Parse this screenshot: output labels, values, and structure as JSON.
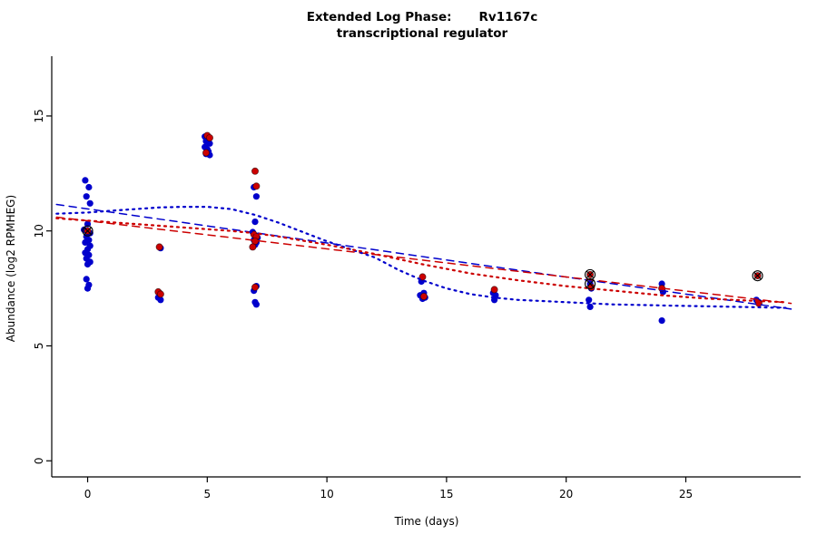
{
  "header": {
    "title_prefix": "Extended Log Phase:",
    "title_gene": "Rv1167c",
    "subtitle": "transcriptional regulator"
  },
  "chart_data": {
    "type": "scatter",
    "title": "Extended Log Phase: Rv1167c transcriptional regulator",
    "xlabel": "Time  (days)",
    "ylabel": "Abundance  (log2 RPMHEG)",
    "xlim": [
      -1.5,
      29.8
    ],
    "ylim": [
      -0.7,
      17.6
    ],
    "xticks": [
      0,
      5,
      10,
      15,
      20,
      25
    ],
    "yticks": [
      0,
      5,
      10,
      15
    ],
    "grid": false,
    "legend": "none",
    "colors": {
      "blue_series": "#0000CC",
      "red_series": "#CC0000",
      "highlight": "#000000"
    },
    "series": [
      {
        "name": "blue-replicates",
        "color": "#0000CC",
        "points": [
          [
            -0.1,
            12.2
          ],
          [
            0.05,
            11.9
          ],
          [
            -0.05,
            11.5
          ],
          [
            0.1,
            11.2
          ],
          [
            0,
            10.3
          ],
          [
            -0.15,
            10.05
          ],
          [
            0.1,
            9.9
          ],
          [
            -0.05,
            9.75
          ],
          [
            0.05,
            9.6
          ],
          [
            -0.1,
            9.5
          ],
          [
            0.1,
            9.35
          ],
          [
            0,
            9.2
          ],
          [
            -0.1,
            9.05
          ],
          [
            0.05,
            8.95
          ],
          [
            -0.05,
            8.8
          ],
          [
            0.1,
            8.65
          ],
          [
            0,
            8.55
          ],
          [
            -0.05,
            7.9
          ],
          [
            0.05,
            7.65
          ],
          [
            0,
            7.5
          ],
          [
            3.05,
            9.25
          ],
          [
            3,
            7.3
          ],
          [
            2.95,
            7.1
          ],
          [
            3.05,
            7.0
          ],
          [
            4.9,
            14.1
          ],
          [
            5.05,
            14.0
          ],
          [
            4.95,
            13.9
          ],
          [
            5.1,
            13.8
          ],
          [
            4.9,
            13.65
          ],
          [
            5,
            13.55
          ],
          [
            5.05,
            13.45
          ],
          [
            4.95,
            13.35
          ],
          [
            5.1,
            13.3
          ],
          [
            6.95,
            11.9
          ],
          [
            7.05,
            11.5
          ],
          [
            7,
            10.4
          ],
          [
            6.9,
            9.95
          ],
          [
            7.1,
            9.7
          ],
          [
            6.95,
            9.6
          ],
          [
            7.05,
            9.5
          ],
          [
            7,
            9.4
          ],
          [
            6.9,
            9.3
          ],
          [
            7.05,
            7.6
          ],
          [
            6.95,
            7.4
          ],
          [
            7,
            6.9
          ],
          [
            7.05,
            6.8
          ],
          [
            13.95,
            7.8
          ],
          [
            14.05,
            7.3
          ],
          [
            13.9,
            7.2
          ],
          [
            14.1,
            7.1
          ],
          [
            14,
            7.05
          ],
          [
            16.95,
            7.3
          ],
          [
            17.05,
            7.2
          ],
          [
            17,
            7.0
          ],
          [
            21,
            7.7
          ],
          [
            21.05,
            7.5
          ],
          [
            20.95,
            7.0
          ],
          [
            21,
            6.7
          ],
          [
            24,
            7.7
          ],
          [
            24.05,
            7.35
          ],
          [
            24,
            6.1
          ],
          [
            28,
            8.05
          ],
          [
            27.95,
            7.0
          ],
          [
            28.05,
            6.9
          ]
        ]
      },
      {
        "name": "red-replicates",
        "color": "#CC0000",
        "stroke": "rgba(40,0,0,0.65)",
        "points": [
          [
            0,
            10.0
          ],
          [
            3,
            9.3
          ],
          [
            2.95,
            7.35
          ],
          [
            3.05,
            7.25
          ],
          [
            5,
            14.15
          ],
          [
            5.1,
            14.05
          ],
          [
            4.95,
            13.4
          ],
          [
            7,
            12.6
          ],
          [
            7.05,
            11.95
          ],
          [
            6.95,
            9.85
          ],
          [
            7.05,
            9.75
          ],
          [
            7,
            9.55
          ],
          [
            6.9,
            9.3
          ],
          [
            7,
            7.55
          ],
          [
            14,
            8.0
          ],
          [
            14.05,
            7.15
          ],
          [
            17,
            7.45
          ],
          [
            21,
            8.1
          ],
          [
            21.05,
            7.55
          ],
          [
            24,
            7.5
          ],
          [
            28,
            8.05
          ],
          [
            28.05,
            6.85
          ]
        ]
      }
    ],
    "trend_lines": [
      {
        "name": "blue-linear-fit",
        "style": "dashed",
        "color": "#0000CC",
        "points": [
          [
            -1.3,
            11.15
          ],
          [
            29.4,
            6.6
          ]
        ]
      },
      {
        "name": "red-linear-fit",
        "style": "dashed",
        "color": "#CC0000",
        "points": [
          [
            -1.3,
            10.6
          ],
          [
            29.4,
            6.85
          ]
        ]
      },
      {
        "name": "blue-smooth-fit",
        "style": "dotted",
        "color": "#0000CC",
        "points": [
          [
            -1.3,
            10.75
          ],
          [
            0,
            10.8
          ],
          [
            1,
            10.88
          ],
          [
            2,
            10.95
          ],
          [
            3,
            11.02
          ],
          [
            4,
            11.05
          ],
          [
            5,
            11.05
          ],
          [
            6,
            10.95
          ],
          [
            7,
            10.7
          ],
          [
            8,
            10.35
          ],
          [
            9,
            9.95
          ],
          [
            10,
            9.55
          ],
          [
            11,
            9.2
          ],
          [
            12,
            8.85
          ],
          [
            13,
            8.3
          ],
          [
            14,
            7.85
          ],
          [
            15,
            7.5
          ],
          [
            16,
            7.25
          ],
          [
            17,
            7.1
          ],
          [
            18,
            7.0
          ],
          [
            19,
            6.95
          ],
          [
            20,
            6.9
          ],
          [
            21,
            6.85
          ],
          [
            22,
            6.8
          ],
          [
            23,
            6.78
          ],
          [
            24,
            6.76
          ],
          [
            25,
            6.74
          ],
          [
            26,
            6.72
          ],
          [
            27,
            6.7
          ],
          [
            28,
            6.68
          ],
          [
            29.2,
            6.65
          ]
        ]
      },
      {
        "name": "red-smooth-fit",
        "style": "dotted",
        "color": "#CC0000",
        "points": [
          [
            -1.3,
            10.55
          ],
          [
            0,
            10.45
          ],
          [
            2,
            10.3
          ],
          [
            4,
            10.15
          ],
          [
            6,
            10.0
          ],
          [
            7,
            9.9
          ],
          [
            8,
            9.75
          ],
          [
            10,
            9.4
          ],
          [
            12,
            9.0
          ],
          [
            14,
            8.55
          ],
          [
            16,
            8.15
          ],
          [
            18,
            7.85
          ],
          [
            20,
            7.6
          ],
          [
            22,
            7.4
          ],
          [
            24,
            7.2
          ],
          [
            26,
            7.05
          ],
          [
            28,
            6.95
          ],
          [
            29.2,
            6.9
          ]
        ]
      }
    ],
    "highlighted_points": [
      [
        0,
        10.0
      ],
      [
        21,
        8.1
      ],
      [
        21,
        7.7
      ],
      [
        28,
        8.05
      ]
    ]
  }
}
